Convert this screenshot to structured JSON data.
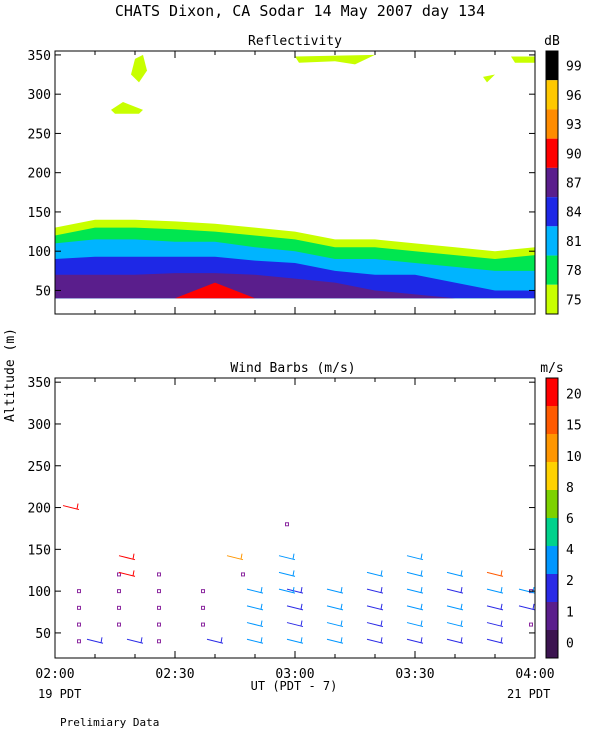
{
  "header": {
    "title": "CHATS Dixon, CA  Sodar  14 May 2007  day 134"
  },
  "y_axis_label": "Altitude (m)",
  "x_axis": {
    "label": "UT  (PDT - 7)",
    "left_date": "19 PDT",
    "right_date": "21 PDT",
    "ticks": [
      "02:00",
      "02:30",
      "03:00",
      "03:30",
      "04:00"
    ]
  },
  "footer": {
    "note": "Prelimiary Data"
  },
  "chart_data": [
    {
      "type": "area",
      "title": "Reflectivity",
      "ylabel": "Altitude (m)",
      "xlabel": "UT  (PDT - 7)",
      "xlim": [
        0,
        120
      ],
      "ylim": [
        20,
        355
      ],
      "yticks": [
        50,
        100,
        150,
        200,
        250,
        300,
        350
      ],
      "x_unit": "minutes after 02:00",
      "colorbar": {
        "unit": "dB",
        "labels": [
          "99",
          "96",
          "93",
          "90",
          "87",
          "84",
          "81",
          "78",
          "75"
        ],
        "colors": [
          "#000000",
          "#ffc800",
          "#ff8c00",
          "#ff0000",
          "#5a1e8c",
          "#1e28e6",
          "#00b4ff",
          "#00e650",
          "#c8ff00"
        ]
      },
      "profile_x": [
        0,
        10,
        20,
        30,
        40,
        50,
        60,
        70,
        80,
        90,
        100,
        110,
        120
      ],
      "bands": [
        {
          "dB": 75,
          "color": "#c8ff00",
          "top": [
            130,
            140,
            140,
            138,
            135,
            130,
            125,
            115,
            115,
            110,
            105,
            100,
            105
          ]
        },
        {
          "dB": 78,
          "color": "#00e650",
          "top": [
            120,
            130,
            130,
            128,
            125,
            120,
            115,
            105,
            105,
            100,
            95,
            90,
            95
          ]
        },
        {
          "dB": 81,
          "color": "#00b4ff",
          "top": [
            110,
            115,
            115,
            112,
            112,
            105,
            100,
            90,
            90,
            85,
            80,
            75,
            75
          ]
        },
        {
          "dB": 84,
          "color": "#1e28e6",
          "top": [
            90,
            93,
            93,
            93,
            93,
            88,
            85,
            75,
            70,
            70,
            60,
            50,
            50
          ]
        },
        {
          "dB": 87,
          "color": "#5a1e8c",
          "top": [
            70,
            70,
            70,
            72,
            72,
            70,
            65,
            60,
            50,
            45,
            40,
            40,
            40
          ]
        }
      ],
      "base_altitude": 40,
      "peak": {
        "dB": 90,
        "color": "#ff0000",
        "x": [
          30,
          40,
          50
        ],
        "y": [
          40,
          60,
          40
        ]
      },
      "patches": [
        {
          "dB": 75,
          "color": "#c8ff00",
          "points": [
            [
              20,
              345
            ],
            [
              22,
              350
            ],
            [
              23,
              330
            ],
            [
              21,
              315
            ],
            [
              19,
              325
            ]
          ]
        },
        {
          "dB": 75,
          "color": "#c8ff00",
          "points": [
            [
              14,
              280
            ],
            [
              17,
              290
            ],
            [
              22,
              280
            ],
            [
              21,
              275
            ],
            [
              15,
              275
            ]
          ]
        },
        {
          "dB": 75,
          "color": "#c8ff00",
          "points": [
            [
              60,
              348
            ],
            [
              80,
              350
            ],
            [
              75,
              338
            ],
            [
              70,
              342
            ],
            [
              61,
              340
            ]
          ]
        },
        {
          "dB": 75,
          "color": "#c8ff00",
          "points": [
            [
              107,
              322
            ],
            [
              110,
              325
            ],
            [
              108,
              315
            ]
          ]
        },
        {
          "dB": 75,
          "color": "#c8ff00",
          "points": [
            [
              114,
              348
            ],
            [
              120,
              348
            ],
            [
              120,
              340
            ],
            [
              115,
              340
            ]
          ]
        }
      ]
    },
    {
      "type": "scatter",
      "title": "Wind Barbs (m/s)",
      "ylabel": "Altitude (m)",
      "xlabel": "UT  (PDT - 7)",
      "xlim": [
        0,
        120
      ],
      "ylim": [
        20,
        355
      ],
      "yticks": [
        50,
        100,
        150,
        200,
        250,
        300,
        350
      ],
      "x_unit": "minutes after 02:00",
      "colorbar": {
        "unit": "m/s",
        "labels": [
          "20",
          "15",
          "10",
          "8",
          "6",
          "4",
          "2",
          "1",
          "0"
        ],
        "colors": [
          "#ff0000",
          "#ff5a00",
          "#ff9600",
          "#ffd200",
          "#7dd200",
          "#00d28c",
          "#0096ff",
          "#2a2ae6",
          "#5a1e8c",
          "#3c1450"
        ]
      },
      "calm_points": [
        [
          6,
          40
        ],
        [
          6,
          60
        ],
        [
          6,
          80
        ],
        [
          6,
          100
        ],
        [
          16,
          60
        ],
        [
          16,
          80
        ],
        [
          16,
          100
        ],
        [
          16,
          120
        ],
        [
          26,
          40
        ],
        [
          26,
          60
        ],
        [
          26,
          80
        ],
        [
          26,
          100
        ],
        [
          26,
          120
        ],
        [
          37,
          60
        ],
        [
          37,
          80
        ],
        [
          37,
          100
        ],
        [
          47,
          120
        ],
        [
          58,
          180
        ],
        [
          119,
          60
        ],
        [
          119,
          100
        ]
      ],
      "barbs": [
        {
          "x": 10,
          "y": 40,
          "color": "#2a2ae6"
        },
        {
          "x": 20,
          "y": 40,
          "color": "#2a2ae6"
        },
        {
          "x": 40,
          "y": 40,
          "color": "#2a2ae6"
        },
        {
          "x": 50,
          "y": 40,
          "color": "#0096ff"
        },
        {
          "x": 60,
          "y": 40,
          "color": "#0096ff"
        },
        {
          "x": 70,
          "y": 40,
          "color": "#0096ff"
        },
        {
          "x": 80,
          "y": 40,
          "color": "#2a2ae6"
        },
        {
          "x": 90,
          "y": 40,
          "color": "#2a2ae6"
        },
        {
          "x": 100,
          "y": 40,
          "color": "#2a2ae6"
        },
        {
          "x": 110,
          "y": 40,
          "color": "#2a2ae6"
        },
        {
          "x": 50,
          "y": 60,
          "color": "#0096ff"
        },
        {
          "x": 60,
          "y": 60,
          "color": "#2a2ae6"
        },
        {
          "x": 70,
          "y": 60,
          "color": "#0096ff"
        },
        {
          "x": 80,
          "y": 60,
          "color": "#2a2ae6"
        },
        {
          "x": 90,
          "y": 60,
          "color": "#0096ff"
        },
        {
          "x": 100,
          "y": 60,
          "color": "#0096ff"
        },
        {
          "x": 110,
          "y": 60,
          "color": "#2a2ae6"
        },
        {
          "x": 50,
          "y": 80,
          "color": "#0096ff"
        },
        {
          "x": 60,
          "y": 80,
          "color": "#2a2ae6"
        },
        {
          "x": 70,
          "y": 80,
          "color": "#0096ff"
        },
        {
          "x": 80,
          "y": 80,
          "color": "#2a2ae6"
        },
        {
          "x": 90,
          "y": 80,
          "color": "#0096ff"
        },
        {
          "x": 100,
          "y": 80,
          "color": "#0096ff"
        },
        {
          "x": 110,
          "y": 80,
          "color": "#2a2ae6"
        },
        {
          "x": 118,
          "y": 80,
          "color": "#2a2ae6"
        },
        {
          "x": 50,
          "y": 100,
          "color": "#0096ff"
        },
        {
          "x": 60,
          "y": 100,
          "color": "#2a2ae6"
        },
        {
          "x": 70,
          "y": 100,
          "color": "#0096ff"
        },
        {
          "x": 80,
          "y": 100,
          "color": "#2a2ae6"
        },
        {
          "x": 90,
          "y": 100,
          "color": "#0096ff"
        },
        {
          "x": 100,
          "y": 100,
          "color": "#2a2ae6"
        },
        {
          "x": 110,
          "y": 100,
          "color": "#0096ff"
        },
        {
          "x": 118,
          "y": 100,
          "color": "#0096ff"
        },
        {
          "x": 58,
          "y": 100,
          "color": "#0096ff"
        },
        {
          "x": 58,
          "y": 120,
          "color": "#0096ff"
        },
        {
          "x": 80,
          "y": 120,
          "color": "#0096ff"
        },
        {
          "x": 90,
          "y": 120,
          "color": "#0096ff"
        },
        {
          "x": 100,
          "y": 120,
          "color": "#0096ff"
        },
        {
          "x": 110,
          "y": 120,
          "color": "#ff5a00"
        },
        {
          "x": 58,
          "y": 140,
          "color": "#0096ff"
        },
        {
          "x": 90,
          "y": 140,
          "color": "#0096ff"
        },
        {
          "x": 45,
          "y": 140,
          "color": "#ff9600"
        },
        {
          "x": 18,
          "y": 120,
          "color": "#ff0000"
        },
        {
          "x": 18,
          "y": 140,
          "color": "#ff0000"
        },
        {
          "x": 4,
          "y": 200,
          "color": "#ff0000"
        }
      ]
    }
  ]
}
